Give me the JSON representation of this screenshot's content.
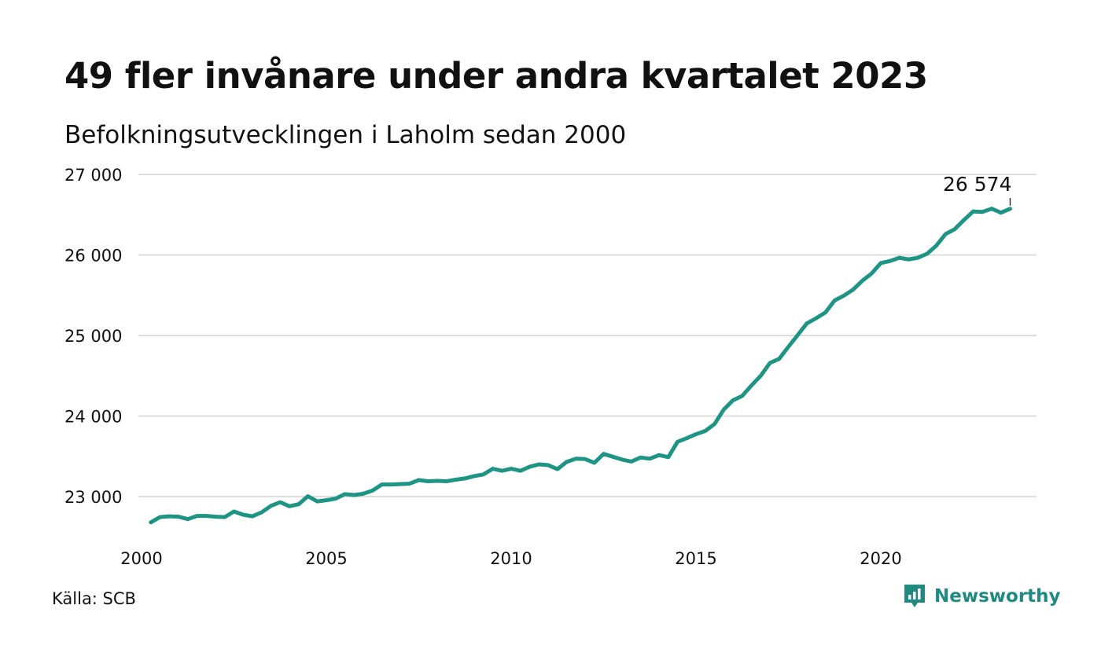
{
  "title": "49 fler invånare under andra kvartalet 2023",
  "subtitle": "Befolkningsutvecklingen i Laholm sedan 2000",
  "source": "Källa: SCB",
  "brand": {
    "name": "Newsworthy",
    "color": "#1f8a7f",
    "icon": "newsworthy-logo-icon"
  },
  "colors": {
    "line": "#1d9484",
    "grid": "#dddddd",
    "text": "#111111"
  },
  "chart_data": {
    "type": "line",
    "x_unit": "year",
    "ylim": [
      22500,
      27000
    ],
    "xlim": [
      2000,
      2024.2
    ],
    "y_ticks": [
      23000,
      24000,
      25000,
      26000,
      27000
    ],
    "y_tick_labels": [
      "23 000",
      "24 000",
      "25 000",
      "26 000",
      "27 000"
    ],
    "x_ticks": [
      2000,
      2005,
      2010,
      2015,
      2020
    ],
    "x_tick_labels": [
      "2000",
      "2005",
      "2010",
      "2015",
      "2020"
    ],
    "grid": true,
    "legend": "none",
    "annotation": {
      "label": "26 574",
      "x": 2023.5,
      "y": 26574
    },
    "series": [
      {
        "x": [
          2000.25,
          2000.5,
          2000.75,
          2001.0,
          2001.25,
          2001.5,
          2001.75,
          2002.0,
          2002.25,
          2002.5,
          2002.75,
          2003.0,
          2003.25,
          2003.5,
          2003.75,
          2004.0,
          2004.25,
          2004.5,
          2004.75,
          2005.0,
          2005.25,
          2005.5,
          2005.75,
          2006.0,
          2006.25,
          2006.5,
          2006.75,
          2007.0,
          2007.25,
          2007.5,
          2007.75,
          2008.0,
          2008.25,
          2008.5,
          2008.75,
          2009.0,
          2009.25,
          2009.5,
          2009.75,
          2010.0,
          2010.25,
          2010.5,
          2010.75,
          2011.0,
          2011.25,
          2011.5,
          2011.75,
          2012.0,
          2012.25,
          2012.5,
          2012.75,
          2013.0,
          2013.25,
          2013.5,
          2013.75,
          2014.0,
          2014.25,
          2014.5,
          2014.75,
          2015.0,
          2015.25,
          2015.5,
          2015.75,
          2016.0,
          2016.25,
          2016.5,
          2016.75,
          2017.0,
          2017.25,
          2017.5,
          2017.75,
          2018.0,
          2018.25,
          2018.5,
          2018.75,
          2019.0,
          2019.25,
          2019.5,
          2019.75,
          2020.0,
          2020.25,
          2020.5,
          2020.75,
          2021.0,
          2021.25,
          2021.5,
          2021.75,
          2022.0,
          2022.25,
          2022.5,
          2022.75,
          2023.0,
          2023.25,
          2023.5
        ],
        "values": [
          22680,
          22745,
          22755,
          22750,
          22720,
          22760,
          22760,
          22750,
          22745,
          22815,
          22775,
          22755,
          22805,
          22885,
          22930,
          22880,
          22905,
          23005,
          22940,
          22955,
          22975,
          23030,
          23020,
          23035,
          23075,
          23150,
          23150,
          23155,
          23160,
          23205,
          23190,
          23195,
          23190,
          23210,
          23225,
          23255,
          23275,
          23345,
          23320,
          23345,
          23320,
          23370,
          23400,
          23390,
          23340,
          23430,
          23470,
          23465,
          23420,
          23530,
          23495,
          23460,
          23435,
          23485,
          23470,
          23515,
          23490,
          23680,
          23725,
          23775,
          23815,
          23900,
          24080,
          24195,
          24250,
          24380,
          24500,
          24660,
          24710,
          24860,
          25005,
          25150,
          25215,
          25285,
          25435,
          25495,
          25570,
          25680,
          25770,
          25900,
          25925,
          25965,
          25945,
          25965,
          26015,
          26115,
          26260,
          26320,
          26435,
          26540,
          26535,
          26575,
          26525,
          26574
        ]
      }
    ]
  }
}
